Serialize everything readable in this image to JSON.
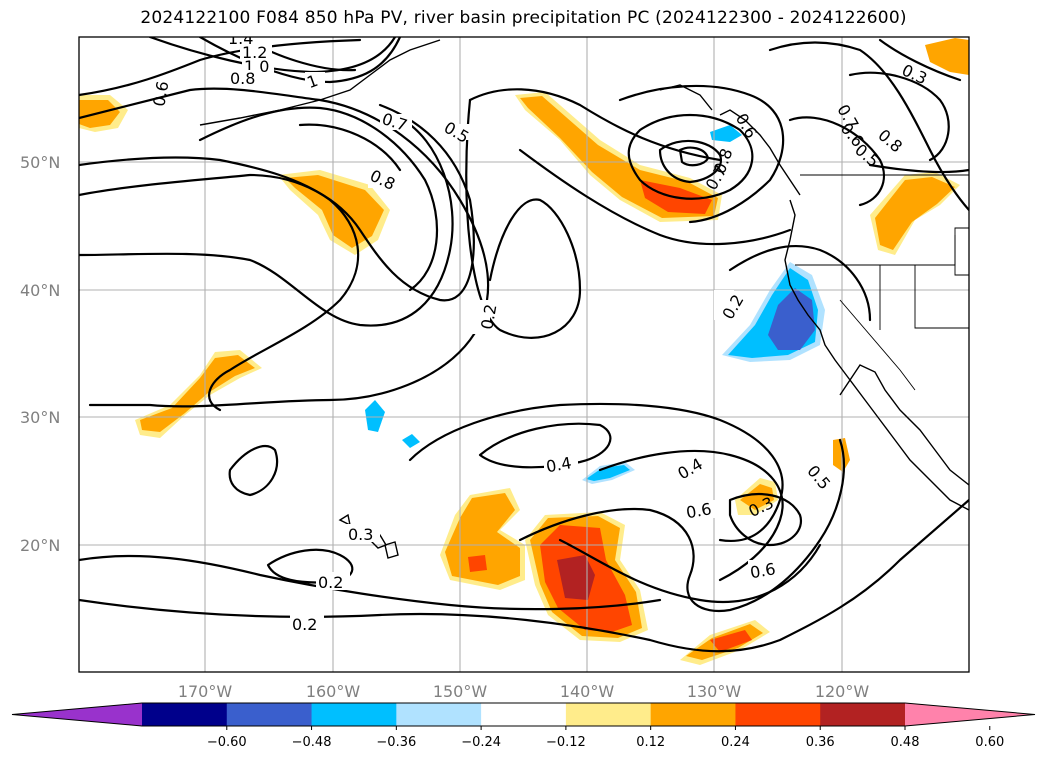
{
  "title": "2024122100 F084 850 hPa PV, river basin precipitation PC (2024122300 - 2024122600)",
  "map": {
    "lat_labels": [
      "50°N",
      "40°N",
      "30°N",
      "20°N"
    ],
    "lon_labels": [
      "170°W",
      "160°W",
      "150°W",
      "140°W",
      "130°W",
      "120°W"
    ]
  },
  "contour_labels": [
    "1.4",
    "1.2",
    "1.0",
    "0.8",
    "0.6",
    "0.7",
    "0.5",
    "0.8",
    "1",
    "0.2",
    "0.7",
    "0.6",
    "0.8",
    "0.7",
    "0.6",
    "0.8",
    "0.5",
    "0.3",
    "0.2",
    "0.4",
    "0.4",
    "0.6",
    "0.5",
    "0.3",
    "0.6",
    "0.3",
    "0.2",
    "0.2"
  ],
  "colorbar": {
    "colors": [
      "#9932cc",
      "#00008b",
      "#3a5fcd",
      "#00bfff",
      "#b0e2ff",
      "#ffffff",
      "#ffec8b",
      "#ffa500",
      "#ff4500",
      "#b22222",
      "#ff82ab"
    ],
    "tick_labels": [
      "−0.60",
      "−0.48",
      "−0.36",
      "−0.24",
      "−0.12",
      "0.12",
      "0.24",
      "0.36",
      "0.48",
      "0.60"
    ]
  }
}
